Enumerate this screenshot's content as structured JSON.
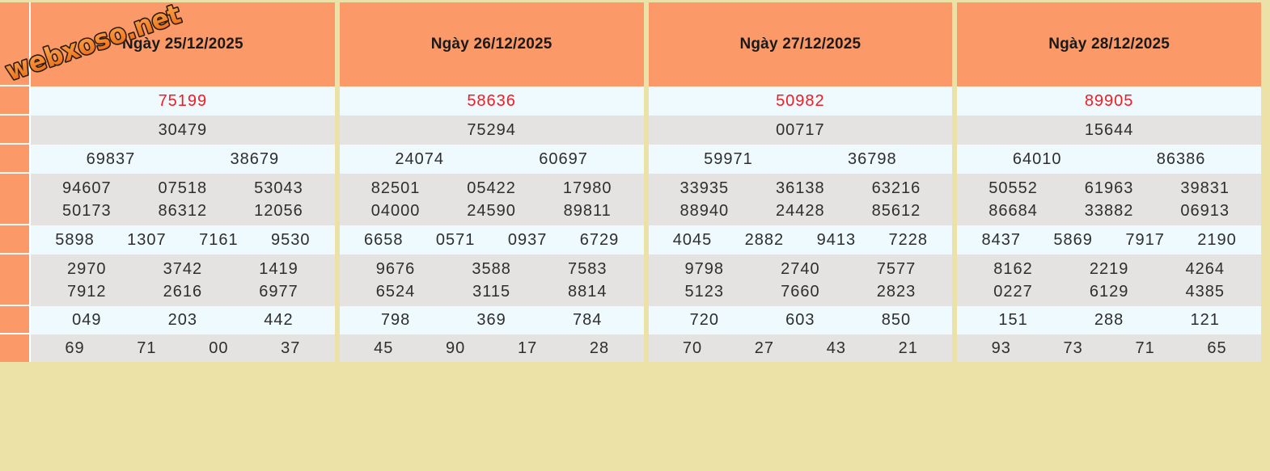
{
  "logo": {
    "text": "webxoso.net"
  },
  "colors": {
    "page_background": "#ece2a8",
    "header_orange": "#fb9a68",
    "row_light": "#eefafd",
    "row_gray": "#e4e3e2",
    "special_red": "#f41b22",
    "number_text": "#2e2e2e",
    "header_text": "#1a1a1a",
    "separator_white": "#ffffff",
    "logo_gradient_top": "#ffb25e",
    "logo_gradient_bottom": "#e8650c",
    "logo_outline": "#2f1a05"
  },
  "columns": [
    {
      "date": "Ngày 25/12/2025",
      "rows": [
        {
          "special": true,
          "lines": [
            [
              "75199"
            ]
          ]
        },
        {
          "special": false,
          "lines": [
            [
              "30479"
            ]
          ]
        },
        {
          "special": false,
          "lines": [
            [
              "69837",
              "38679"
            ]
          ]
        },
        {
          "special": false,
          "lines": [
            [
              "94607",
              "07518",
              "53043"
            ],
            [
              "50173",
              "86312",
              "12056"
            ]
          ]
        },
        {
          "special": false,
          "lines": [
            [
              "5898",
              "1307",
              "7161",
              "9530"
            ]
          ]
        },
        {
          "special": false,
          "lines": [
            [
              "2970",
              "3742",
              "1419"
            ],
            [
              "7912",
              "2616",
              "6977"
            ]
          ]
        },
        {
          "special": false,
          "lines": [
            [
              "049",
              "203",
              "442"
            ]
          ]
        },
        {
          "special": false,
          "lines": [
            [
              "69",
              "71",
              "00",
              "37"
            ]
          ]
        }
      ]
    },
    {
      "date": "Ngày 26/12/2025",
      "rows": [
        {
          "special": true,
          "lines": [
            [
              "58636"
            ]
          ]
        },
        {
          "special": false,
          "lines": [
            [
              "75294"
            ]
          ]
        },
        {
          "special": false,
          "lines": [
            [
              "24074",
              "60697"
            ]
          ]
        },
        {
          "special": false,
          "lines": [
            [
              "82501",
              "05422",
              "17980"
            ],
            [
              "04000",
              "24590",
              "89811"
            ]
          ]
        },
        {
          "special": false,
          "lines": [
            [
              "6658",
              "0571",
              "0937",
              "6729"
            ]
          ]
        },
        {
          "special": false,
          "lines": [
            [
              "9676",
              "3588",
              "7583"
            ],
            [
              "6524",
              "3115",
              "8814"
            ]
          ]
        },
        {
          "special": false,
          "lines": [
            [
              "798",
              "369",
              "784"
            ]
          ]
        },
        {
          "special": false,
          "lines": [
            [
              "45",
              "90",
              "17",
              "28"
            ]
          ]
        }
      ]
    },
    {
      "date": "Ngày 27/12/2025",
      "rows": [
        {
          "special": true,
          "lines": [
            [
              "50982"
            ]
          ]
        },
        {
          "special": false,
          "lines": [
            [
              "00717"
            ]
          ]
        },
        {
          "special": false,
          "lines": [
            [
              "59971",
              "36798"
            ]
          ]
        },
        {
          "special": false,
          "lines": [
            [
              "33935",
              "36138",
              "63216"
            ],
            [
              "88940",
              "24428",
              "85612"
            ]
          ]
        },
        {
          "special": false,
          "lines": [
            [
              "4045",
              "2882",
              "9413",
              "7228"
            ]
          ]
        },
        {
          "special": false,
          "lines": [
            [
              "9798",
              "2740",
              "7577"
            ],
            [
              "5123",
              "7660",
              "2823"
            ]
          ]
        },
        {
          "special": false,
          "lines": [
            [
              "720",
              "603",
              "850"
            ]
          ]
        },
        {
          "special": false,
          "lines": [
            [
              "70",
              "27",
              "43",
              "21"
            ]
          ]
        }
      ]
    },
    {
      "date": "Ngày 28/12/2025",
      "rows": [
        {
          "special": true,
          "lines": [
            [
              "89905"
            ]
          ]
        },
        {
          "special": false,
          "lines": [
            [
              "15644"
            ]
          ]
        },
        {
          "special": false,
          "lines": [
            [
              "64010",
              "86386"
            ]
          ]
        },
        {
          "special": false,
          "lines": [
            [
              "50552",
              "61963",
              "39831"
            ],
            [
              "86684",
              "33882",
              "06913"
            ]
          ]
        },
        {
          "special": false,
          "lines": [
            [
              "8437",
              "5869",
              "7917",
              "2190"
            ]
          ]
        },
        {
          "special": false,
          "lines": [
            [
              "8162",
              "2219",
              "4264"
            ],
            [
              "0227",
              "6129",
              "4385"
            ]
          ]
        },
        {
          "special": false,
          "lines": [
            [
              "151",
              "288",
              "121"
            ]
          ]
        },
        {
          "special": false,
          "lines": [
            [
              "93",
              "73",
              "71",
              "65"
            ]
          ]
        }
      ]
    }
  ]
}
